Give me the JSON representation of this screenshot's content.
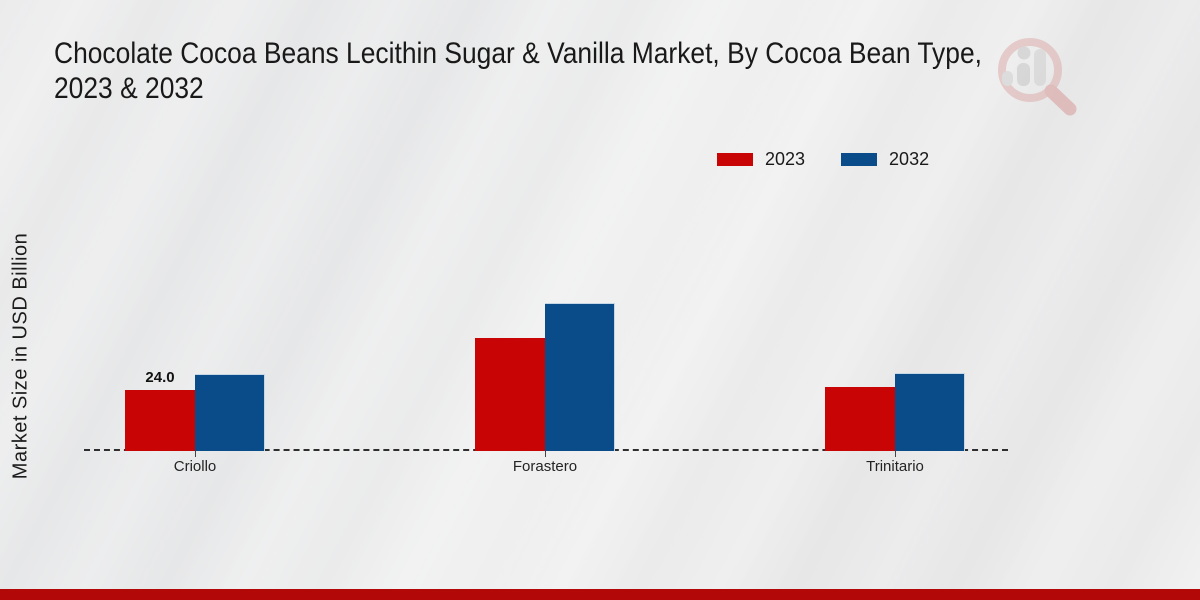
{
  "title": {
    "line1": "Chocolate Cocoa Beans Lecithin Sugar & Vanilla Market, By Cocoa Bean Type,",
    "line2": "2023 & 2032",
    "full": "Chocolate Cocoa Beans Lecithin Sugar & Vanilla Market, By Cocoa Bean Type, 2023 & 2032"
  },
  "y_axis_label": "Market Size in USD Billion",
  "icons": {
    "watermark": "magnifier-bar-chart-logo-icon"
  },
  "colors": {
    "series_2023": "#c90404",
    "series_2032": "#0a4b8a",
    "footer_band": "#b30808",
    "background": "#e9e9ea",
    "baseline": "#2e2e2e"
  },
  "chart_data": {
    "type": "bar",
    "title": "Chocolate Cocoa Beans Lecithin Sugar & Vanilla Market, By Cocoa Bean Type, 2023 & 2032",
    "categories": [
      "Criollo",
      "Forastero",
      "Trinitario"
    ],
    "series": [
      {
        "name": "2023",
        "color": "#c90404",
        "values": [
          24.0,
          44.5,
          25.2
        ],
        "labels": [
          "24.0",
          "",
          ""
        ]
      },
      {
        "name": "2032",
        "color": "#0a4b8a",
        "values": [
          30.3,
          58.2,
          30.7
        ],
        "labels": [
          "",
          "",
          ""
        ]
      }
    ],
    "xlabel": "",
    "ylabel": "Market Size in USD Billion",
    "ylim": [
      0,
      65
    ],
    "grid": false,
    "y_axis_ticks_shown": false,
    "baseline_style": "dashed",
    "legend_position": "top-right",
    "value_labels_shown": [
      "Criollo 2023: 24.0"
    ]
  }
}
